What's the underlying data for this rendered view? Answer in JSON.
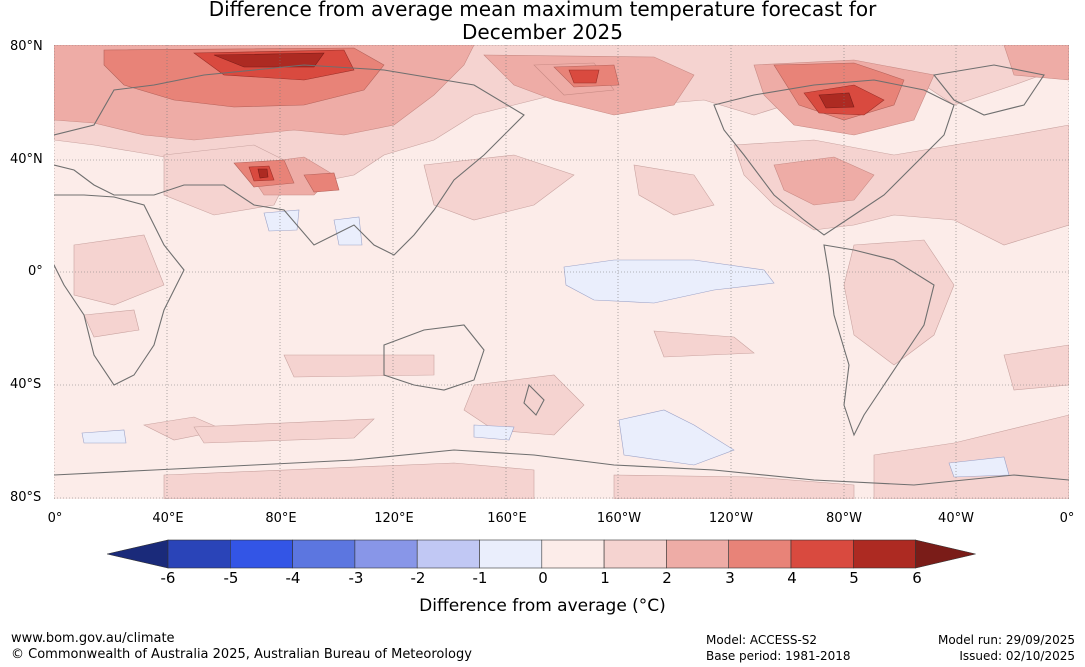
{
  "title": {
    "line1": "Difference from average mean maximum temperature forecast for",
    "line2": "December 2025"
  },
  "map": {
    "latitude_labels": [
      "80°N",
      "40°N",
      "0°",
      "40°S",
      "80°S"
    ],
    "longitude_labels": [
      "0°",
      "40°E",
      "80°E",
      "120°E",
      "160°E",
      "160°W",
      "120°W",
      "80°W",
      "40°W",
      "0°"
    ]
  },
  "colorbar": {
    "ticks": [
      "-6",
      "-5",
      "-4",
      "-3",
      "-2",
      "-1",
      "0",
      "1",
      "2",
      "3",
      "4",
      "5",
      "6"
    ],
    "colors": [
      "#1a2a7a",
      "#2a44b8",
      "#3355e6",
      "#5c76e0",
      "#8896e8",
      "#c1c8f4",
      "#eaeefc",
      "#fcece9",
      "#f5d3d0",
      "#eeaca6",
      "#e88378",
      "#d94a3f",
      "#ad2a22",
      "#7a1c18"
    ],
    "label": "Difference from average (°C)"
  },
  "footer": {
    "website": "www.bom.gov.au/climate",
    "copyright": "© Commonwealth of Australia 2025, Australian Bureau of Meteorology",
    "model": "Model: ACCESS-S2",
    "base_period": "Base period: 1981-2018",
    "model_run": "Model run: 29/09/2025",
    "issued": "Issued: 02/10/2025"
  }
}
